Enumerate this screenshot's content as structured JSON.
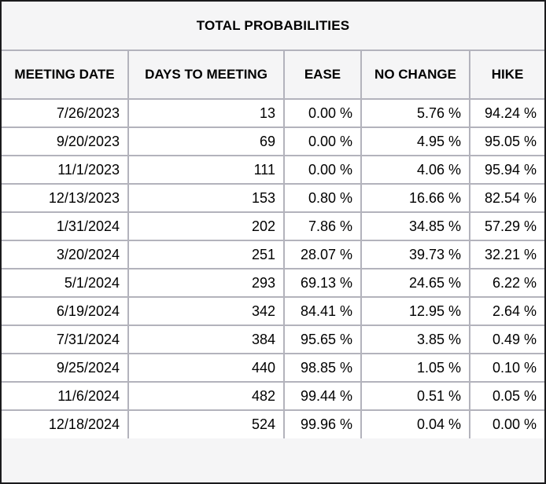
{
  "chart_data": {
    "type": "table",
    "title": "TOTAL PROBABILITIES",
    "columns": [
      "MEETING DATE",
      "DAYS TO MEETING",
      "EASE",
      "NO CHANGE",
      "HIKE"
    ],
    "rows": [
      [
        "7/26/2023",
        "13",
        "0.00 %",
        "5.76 %",
        "94.24 %"
      ],
      [
        "9/20/2023",
        "69",
        "0.00 %",
        "4.95 %",
        "95.05 %"
      ],
      [
        "11/1/2023",
        "111",
        "0.00 %",
        "4.06 %",
        "95.94 %"
      ],
      [
        "12/13/2023",
        "153",
        "0.80 %",
        "16.66 %",
        "82.54 %"
      ],
      [
        "1/31/2024",
        "202",
        "7.86 %",
        "34.85 %",
        "57.29 %"
      ],
      [
        "3/20/2024",
        "251",
        "28.07 %",
        "39.73 %",
        "32.21 %"
      ],
      [
        "5/1/2024",
        "293",
        "69.13 %",
        "24.65 %",
        "6.22 %"
      ],
      [
        "6/19/2024",
        "342",
        "84.41 %",
        "12.95 %",
        "2.64 %"
      ],
      [
        "7/31/2024",
        "384",
        "95.65 %",
        "3.85 %",
        "0.49 %"
      ],
      [
        "9/25/2024",
        "440",
        "98.85 %",
        "1.05 %",
        "0.10 %"
      ],
      [
        "11/6/2024",
        "482",
        "99.44 %",
        "0.51 %",
        "0.05 %"
      ],
      [
        "12/18/2024",
        "524",
        "99.96 %",
        "0.04 %",
        "0.00 %"
      ]
    ],
    "layout": {
      "legend": "none",
      "grid": "on",
      "header_alignment": "center",
      "cell_alignment": "right"
    }
  },
  "colors": {
    "header_bg": "#f5f5f6",
    "row_bg": "#ffffff",
    "grid_border": "#b3b3bc",
    "outer_border": "#1b1b1d",
    "text": "#000000"
  },
  "column_names_kebab": [
    "meeting-date-cell",
    "days-to-meeting-cell",
    "ease-cell",
    "no-change-cell",
    "hike-cell"
  ]
}
